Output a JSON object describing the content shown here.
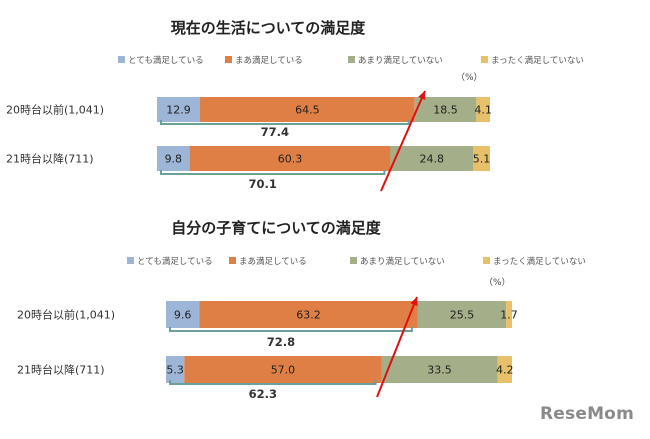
{
  "chart_data": [
    {
      "type": "bar",
      "orientation": "horizontal",
      "stacked": true,
      "title": "現在の生活についての満足度",
      "unit": "（%）",
      "categories": [
        "20時台以前(1,041)",
        "21時台以降(711)"
      ],
      "series": [
        {
          "name": "とても満足している",
          "values": [
            12.9,
            9.8
          ]
        },
        {
          "name": "まあ満足している",
          "values": [
            64.5,
            60.3
          ]
        },
        {
          "name": "あまり満足していない",
          "values": [
            18.5,
            24.8
          ]
        },
        {
          "name": "まったく満足していない",
          "values": [
            4.1,
            5.1
          ]
        }
      ],
      "value_labels": [
        [
          "12.9",
          "64.5",
          "18.5",
          "4.1"
        ],
        [
          "9.8",
          "60.3",
          "24.8",
          "5.1"
        ]
      ],
      "satisfied_totals": [
        "77.4",
        "70.1"
      ],
      "xlim": [
        0,
        100
      ],
      "legend_position": "top",
      "grid": false
    },
    {
      "type": "bar",
      "orientation": "horizontal",
      "stacked": true,
      "title": "自分の子育てについての満足度",
      "unit": "（%）",
      "categories": [
        "20時台以前(1,041)",
        "21時台以降(711)"
      ],
      "series": [
        {
          "name": "とても満足している",
          "values": [
            9.6,
            5.3
          ]
        },
        {
          "name": "まあ満足している",
          "values": [
            63.2,
            57.0
          ]
        },
        {
          "name": "あまり満足していない",
          "values": [
            25.5,
            33.5
          ]
        },
        {
          "name": "まったく満足していない",
          "values": [
            1.7,
            4.2
          ]
        }
      ],
      "value_labels": [
        [
          "9.6",
          "63.2",
          "25.5",
          "1.7"
        ],
        [
          "5.3",
          "57.0",
          "33.5",
          "4.2"
        ]
      ],
      "satisfied_totals": [
        "72.8",
        "62.3"
      ],
      "xlim": [
        0,
        100
      ],
      "legend_position": "top",
      "grid": false
    }
  ],
  "colors": {
    "series": [
      "#9db5d6",
      "#e07f45",
      "#a4ae88",
      "#e8c06a"
    ],
    "arrow": "#e01010",
    "bracket": "#6aa09a"
  },
  "watermark": "ReseMom"
}
